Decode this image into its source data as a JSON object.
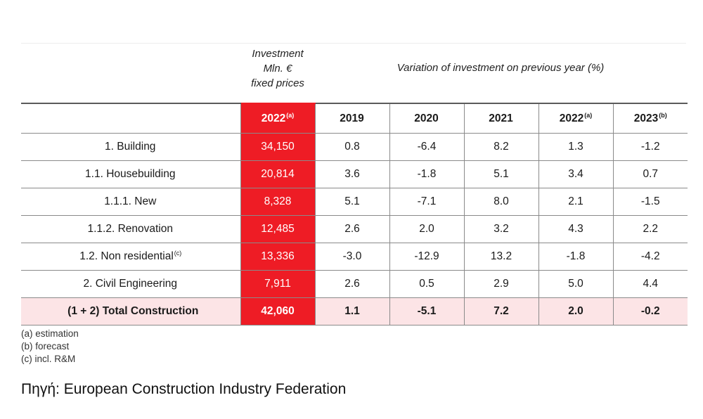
{
  "chart_data": {
    "type": "table",
    "investment_header": [
      "Investment",
      "Mln. €",
      "fixed prices"
    ],
    "variation_header": "Variation of investment on previous year (%)",
    "columns": [
      {
        "label": "2022",
        "sup": "(a)"
      },
      {
        "label": "2019",
        "sup": ""
      },
      {
        "label": "2020",
        "sup": ""
      },
      {
        "label": "2021",
        "sup": ""
      },
      {
        "label": "2022",
        "sup": "(a)"
      },
      {
        "label": "2023",
        "sup": "(b)"
      }
    ],
    "rows": [
      {
        "label": "1. Building",
        "sup": "",
        "level": 0,
        "values": [
          "34,150",
          "0.8",
          "-6.4",
          "8.2",
          "1.3",
          "-1.2"
        ]
      },
      {
        "label": "1.1. Housebuilding",
        "sup": "",
        "level": 1,
        "values": [
          "20,814",
          "3.6",
          "-1.8",
          "5.1",
          "3.4",
          "0.7"
        ]
      },
      {
        "label": "1.1.1. New",
        "sup": "",
        "level": 2,
        "values": [
          "8,328",
          "5.1",
          "-7.1",
          "8.0",
          "2.1",
          "-1.5"
        ]
      },
      {
        "label": "1.1.2. Renovation",
        "sup": "",
        "level": 2,
        "values": [
          "12,485",
          "2.6",
          "2.0",
          "3.2",
          "4.3",
          "2.2"
        ]
      },
      {
        "label": "1.2. Non residential",
        "sup": "(c)",
        "level": 1,
        "values": [
          "13,336",
          "-3.0",
          "-12.9",
          "13.2",
          "-1.8",
          "-4.2"
        ]
      },
      {
        "label": "2. Civil Engineering",
        "sup": "",
        "level": 0,
        "values": [
          "7,911",
          "2.6",
          "0.5",
          "2.9",
          "5.0",
          "4.4"
        ]
      },
      {
        "label": "(1 + 2) Total Construction",
        "sup": "",
        "level": 0,
        "total": true,
        "values": [
          "42,060",
          "1.1",
          "-5.1",
          "7.2",
          "2.0",
          "-0.2"
        ]
      }
    ],
    "notes": [
      "(a) estimation",
      "(b) forecast",
      "(c) incl. R&M"
    ],
    "colors": {
      "highlight": "#ee1c25",
      "total_row": "#fce4e6"
    }
  },
  "source": "Πηγή: European Construction Industry Federation"
}
